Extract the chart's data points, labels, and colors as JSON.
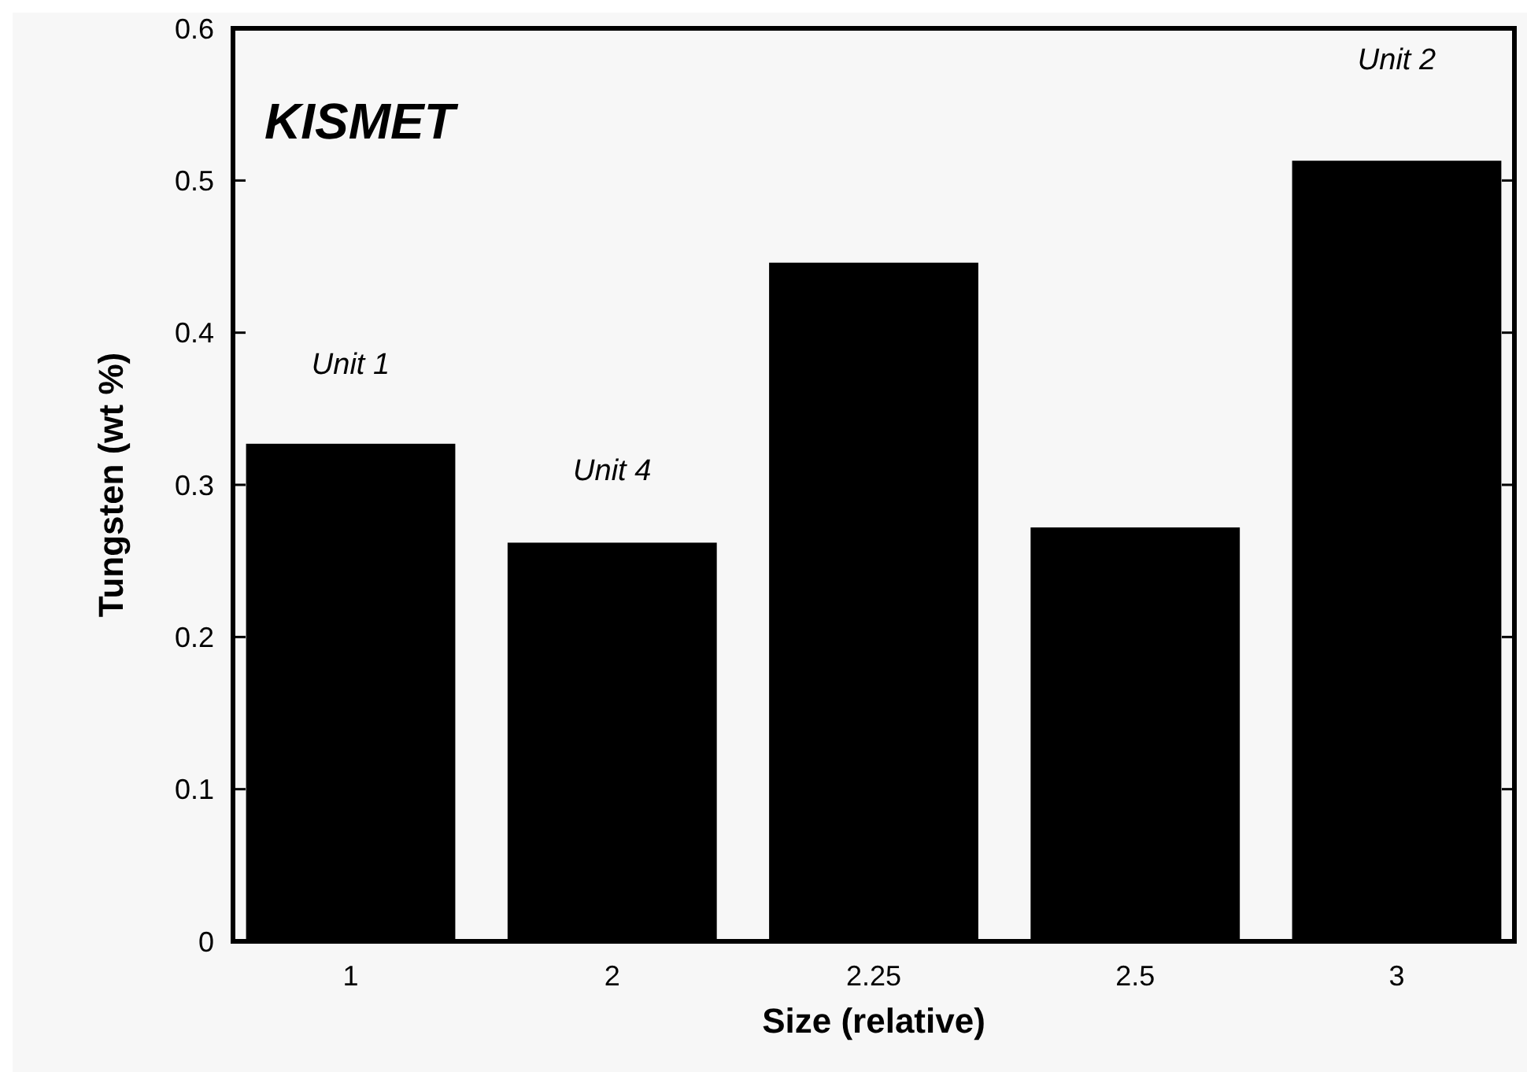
{
  "chart_data": {
    "type": "bar",
    "title": "KISMET",
    "xlabel": "Size (relative)",
    "ylabel": "Tungsten (wt %)",
    "categories": [
      "1",
      "2",
      "2.25",
      "2.5",
      "3"
    ],
    "values": [
      0.327,
      0.262,
      0.446,
      0.272,
      0.513
    ],
    "color": "#000000",
    "ylim": [
      0,
      0.6
    ],
    "yticks": [
      0,
      0.1,
      0.2,
      0.3,
      0.4,
      0.5,
      0.6
    ],
    "grid": false,
    "annotations": [
      "Unit 1",
      "Unit 4",
      "Unit 2"
    ]
  }
}
